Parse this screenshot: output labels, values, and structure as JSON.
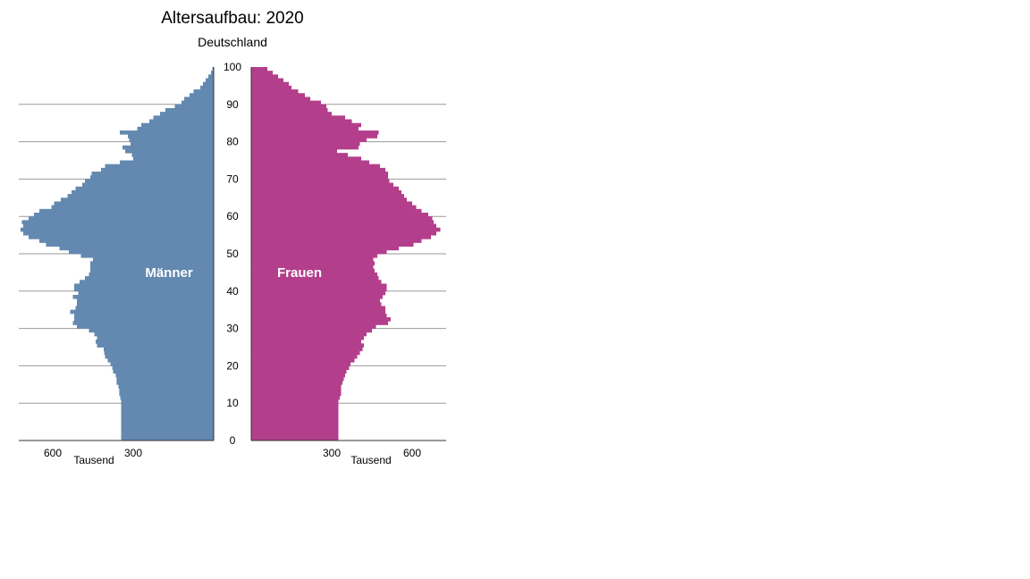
{
  "title": "Altersaufbau: 2020",
  "subtitle": "Deutschland",
  "colors": {
    "maenner": "#6389b0",
    "frauen": "#b33f8c",
    "grid": "#9a9a9a",
    "axis": "#333333"
  },
  "chart_data": {
    "type": "bar",
    "orientation": "population-pyramid",
    "title": "Altersaufbau: 2020",
    "subtitle": "Deutschland",
    "y_axis": {
      "range": [
        0,
        100
      ],
      "ticks": [
        0,
        10,
        20,
        30,
        40,
        50,
        60,
        70,
        80,
        90,
        100
      ]
    },
    "x_axis": {
      "unit": "Tausend",
      "range": [
        0,
        730
      ],
      "ticks_left": [
        600,
        300
      ],
      "ticks_right": [
        300,
        600
      ]
    },
    "grid": true,
    "ages": [
      0,
      1,
      2,
      3,
      4,
      5,
      6,
      7,
      8,
      9,
      10,
      11,
      12,
      13,
      14,
      15,
      16,
      17,
      18,
      19,
      20,
      21,
      22,
      23,
      24,
      25,
      26,
      27,
      28,
      29,
      30,
      31,
      32,
      33,
      34,
      35,
      36,
      37,
      38,
      39,
      40,
      41,
      42,
      43,
      44,
      45,
      46,
      47,
      48,
      49,
      50,
      51,
      52,
      53,
      54,
      55,
      56,
      57,
      58,
      59,
      60,
      61,
      62,
      63,
      64,
      65,
      66,
      67,
      68,
      69,
      70,
      71,
      72,
      73,
      74,
      75,
      76,
      77,
      78,
      79,
      80,
      81,
      82,
      83,
      84,
      85,
      86,
      87,
      88,
      89,
      90,
      91,
      92,
      93,
      94,
      95,
      96,
      97,
      98,
      99
    ],
    "series": [
      {
        "name": "Männer",
        "values": [
          345,
          345,
          345,
          345,
          345,
          345,
          345,
          345,
          345,
          345,
          345,
          348,
          352,
          352,
          355,
          362,
          362,
          365,
          375,
          378,
          385,
          395,
          405,
          408,
          410,
          435,
          440,
          435,
          445,
          465,
          510,
          525,
          520,
          520,
          535,
          515,
          510,
          510,
          525,
          505,
          520,
          520,
          500,
          480,
          465,
          460,
          460,
          460,
          450,
          495,
          540,
          575,
          625,
          650,
          690,
          710,
          720,
          710,
          715,
          690,
          670,
          650,
          605,
          595,
          570,
          545,
          530,
          515,
          490,
          480,
          460,
          455,
          420,
          405,
          350,
          300,
          305,
          330,
          340,
          310,
          315,
          320,
          350,
          285,
          270,
          240,
          225,
          200,
          180,
          145,
          120,
          110,
          90,
          75,
          50,
          40,
          30,
          20,
          10,
          5
        ]
      },
      {
        "name": "Frauen",
        "values": [
          325,
          325,
          325,
          325,
          325,
          325,
          325,
          325,
          325,
          325,
          325,
          330,
          335,
          335,
          335,
          340,
          345,
          350,
          355,
          365,
          370,
          385,
          395,
          405,
          415,
          420,
          410,
          420,
          430,
          450,
          465,
          510,
          520,
          505,
          500,
          500,
          485,
          480,
          490,
          500,
          505,
          505,
          485,
          475,
          470,
          460,
          455,
          460,
          455,
          470,
          505,
          550,
          605,
          635,
          670,
          690,
          705,
          690,
          680,
          675,
          660,
          635,
          615,
          600,
          580,
          570,
          560,
          550,
          530,
          515,
          510,
          510,
          500,
          480,
          440,
          410,
          360,
          320,
          400,
          405,
          430,
          470,
          475,
          400,
          410,
          375,
          350,
          300,
          285,
          280,
          260,
          220,
          200,
          175,
          150,
          140,
          120,
          100,
          80,
          60
        ]
      }
    ],
    "annotations": [
      "Männer",
      "Frauen"
    ]
  }
}
